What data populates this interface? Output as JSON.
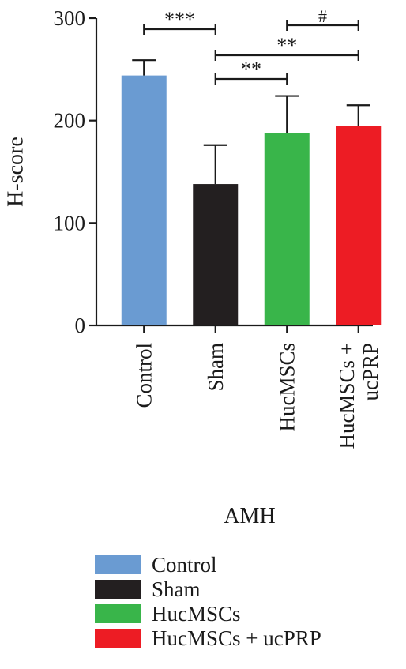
{
  "chart_data": {
    "type": "bar",
    "categories": [
      "Control",
      "Sham",
      "HucMSCs",
      "HucMSCs + ucPRP"
    ],
    "series": [
      {
        "values": [
          244,
          138,
          188,
          195
        ],
        "errors": [
          15,
          38,
          36,
          20
        ],
        "colors": [
          "#6a9bd2",
          "#231f20",
          "#39b54a",
          "#ed1c24"
        ]
      }
    ],
    "ylabel": "H-score",
    "xlabel": "AMH",
    "ylim": [
      0,
      300
    ],
    "yticks": [
      0,
      100,
      200,
      300
    ],
    "significance": [
      {
        "from": 0,
        "to": 1,
        "label": "***"
      },
      {
        "from": 1,
        "to": 3,
        "label": "**"
      },
      {
        "from": 1,
        "to": 2,
        "label": "**"
      },
      {
        "from": 2,
        "to": 3,
        "label": "#"
      }
    ],
    "legend": {
      "position": "bottom",
      "items": [
        {
          "label": "Control",
          "color": "#6a9bd2"
        },
        {
          "label": "Sham",
          "color": "#231f20"
        },
        {
          "label": "HucMSCs",
          "color": "#39b54a"
        },
        {
          "label": "HucMSCs + ucPRP",
          "color": "#ed1c24"
        }
      ]
    }
  }
}
